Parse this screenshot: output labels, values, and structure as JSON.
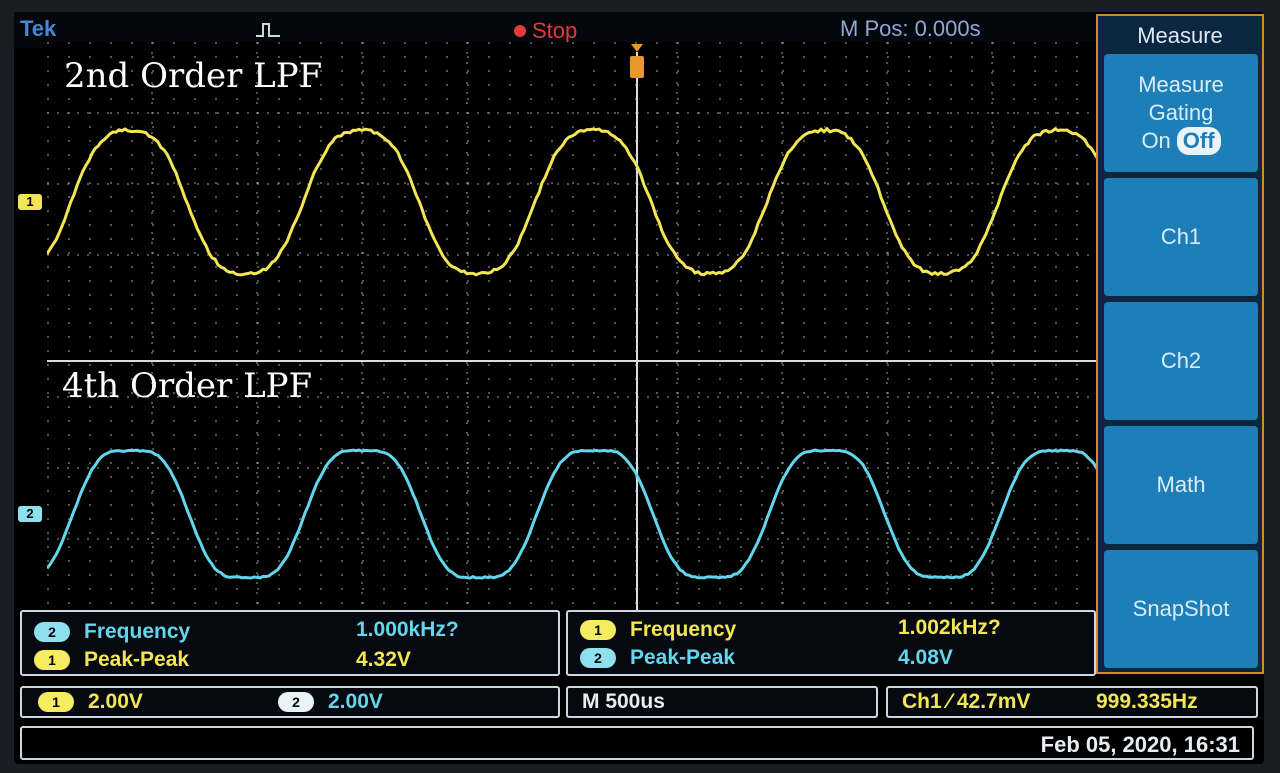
{
  "status": {
    "brand": "Tek",
    "run_state": "Stop",
    "m_pos": "M Pos: 0.000s"
  },
  "overlay": {
    "label_top": "2nd Order LPF",
    "label_bottom": "4th Order LPF"
  },
  "channels": {
    "ch1_marker": "1",
    "ch2_marker": "2",
    "ch1_color": "#f3e654",
    "ch2_color": "#62d6ec"
  },
  "menu": {
    "title": "Measure",
    "gating_label": "Measure Gating",
    "gating_on": "On",
    "gating_off": "Off",
    "ch1": "Ch1",
    "ch2": "Ch2",
    "math": "Math",
    "snapshot": "SnapShot"
  },
  "measurements": {
    "left": [
      {
        "badge": "2",
        "name": "Frequency",
        "value": "1.000kHz?"
      },
      {
        "badge": "1",
        "name": "Peak-Peak",
        "value": "4.32V"
      }
    ],
    "right": [
      {
        "badge": "1",
        "name": "Frequency",
        "value": "1.002kHz?"
      },
      {
        "badge": "2",
        "name": "Peak-Peak",
        "value": "4.08V"
      }
    ]
  },
  "controls": {
    "ch1_badge": "1",
    "ch1_scale": "2.00V",
    "ch2_badge": "2",
    "ch2_scale": "2.00V",
    "timebase": "M 500us",
    "trigger": "Ch1 ∕ 42.7mV",
    "trigger_freq": "999.335Hz"
  },
  "datetime": "Feb 05, 2020, 16:31"
}
